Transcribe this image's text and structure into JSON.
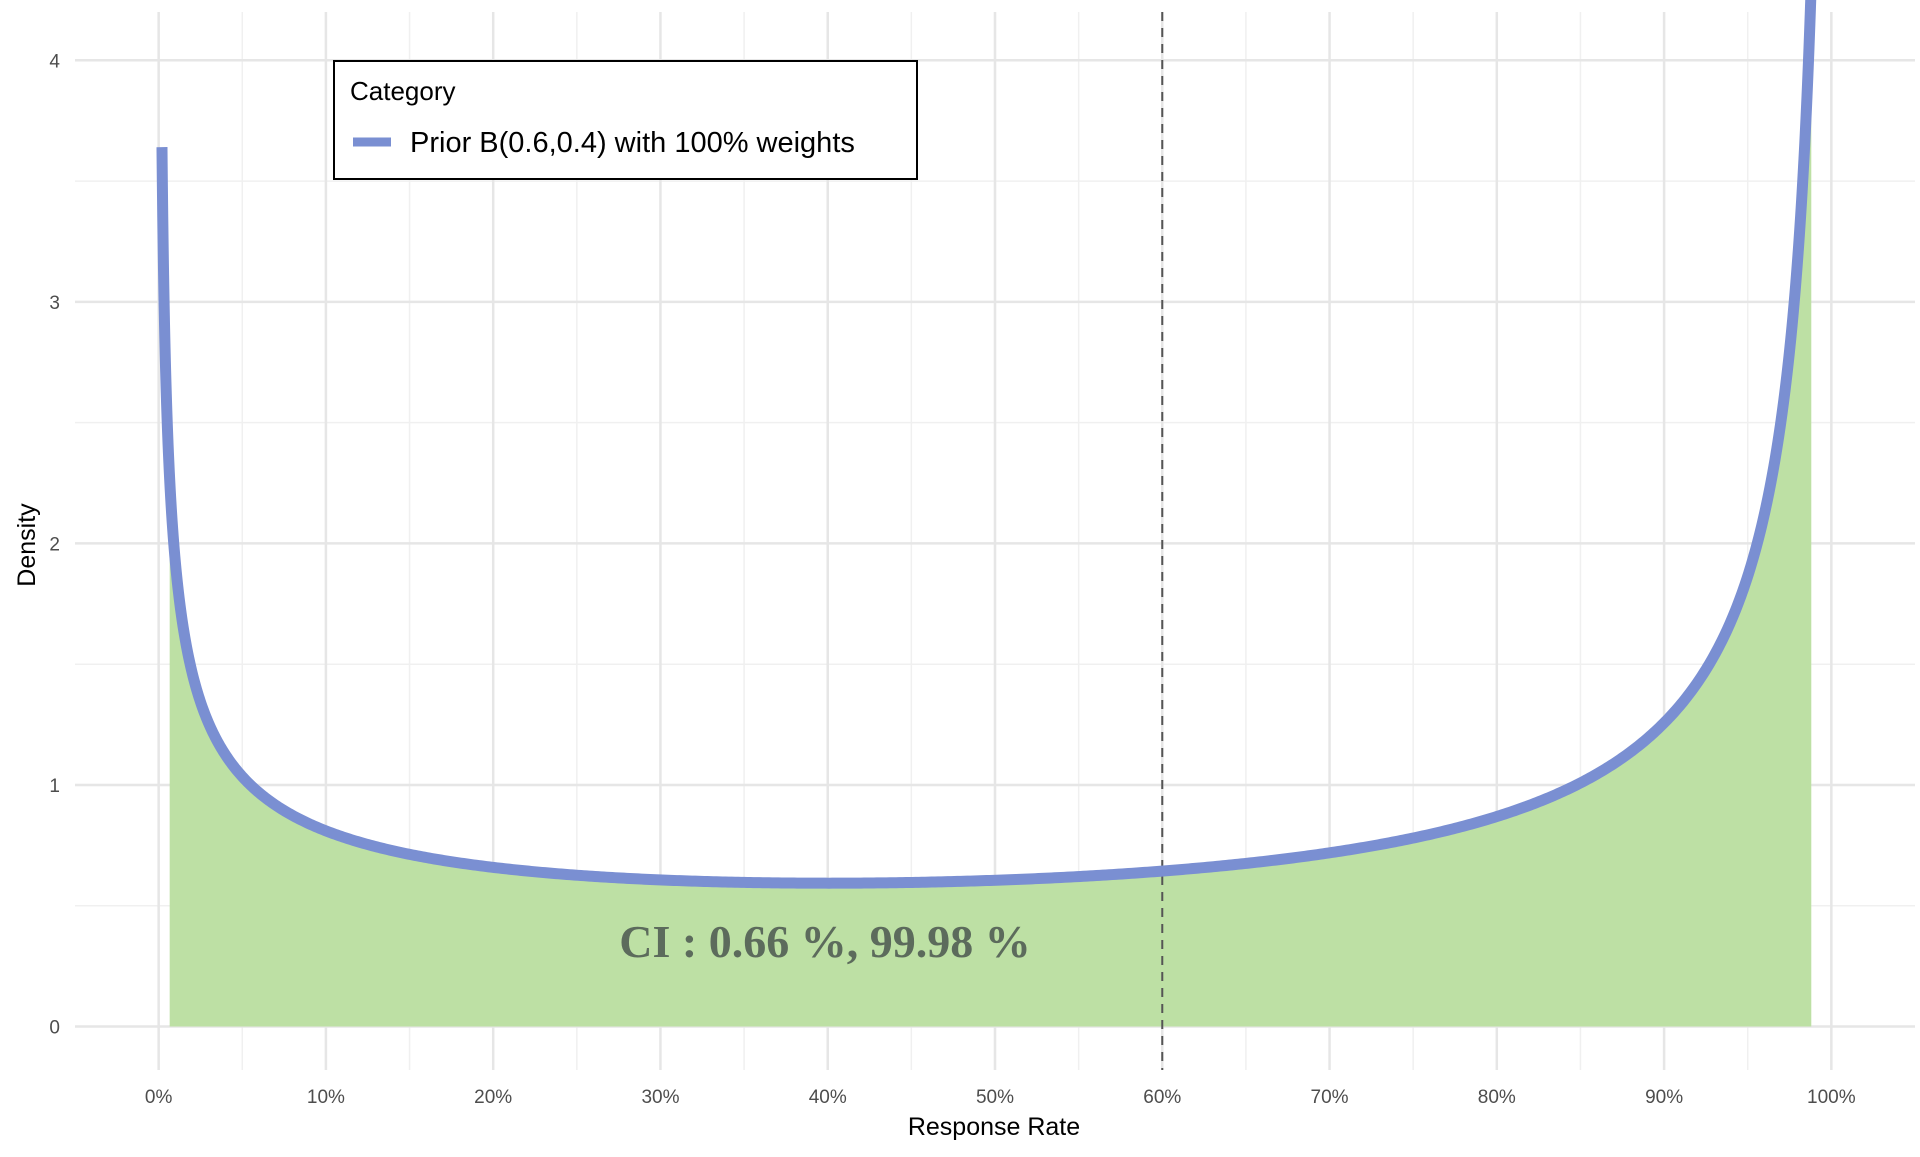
{
  "chart_data": {
    "type": "area",
    "xlabel": "Response Rate",
    "ylabel": "Density",
    "x_tick_labels": [
      "0%",
      "10%",
      "20%",
      "30%",
      "40%",
      "50%",
      "60%",
      "70%",
      "80%",
      "90%",
      "100%"
    ],
    "y_tick_labels": [
      "0",
      "1",
      "2",
      "3",
      "4"
    ],
    "xlim": [
      -0.05,
      1.05
    ],
    "ylim": [
      -0.18,
      4.2
    ],
    "grid": true,
    "legend": {
      "title": "Category",
      "position": "top-left",
      "entries": [
        "Prior B(0.6,0.4) with 100% weights"
      ]
    },
    "series": [
      {
        "name": "Prior B(0.6,0.4) with 100% weights",
        "distribution": "beta",
        "alpha": 0.6,
        "beta": 0.4,
        "x_range": [
          0.002,
          0.988
        ],
        "color": "#7a8fd2"
      }
    ],
    "shaded_interval": {
      "from": 0.0066,
      "to": 0.9998,
      "color": "#bde0a4"
    },
    "vline": {
      "x": 0.6,
      "color": "#555555",
      "style": "dashed"
    },
    "annotation": "CI : 0.66 %, 99.98 %"
  }
}
